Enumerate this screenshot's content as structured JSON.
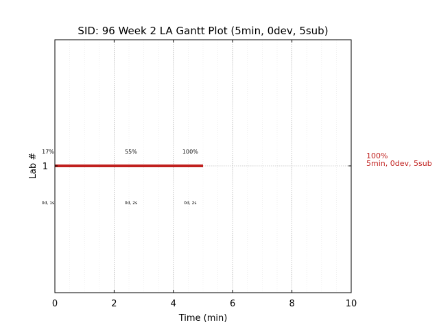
{
  "chart_data": {
    "type": "gantt",
    "title": "SID: 96 Week 2 LA Gantt Plot (5min, 0dev, 5sub)",
    "xlabel": "Time (min)",
    "ylabel": "Lab #",
    "xlim": [
      0,
      10
    ],
    "x_ticks": [
      "0",
      "2",
      "4",
      "6",
      "8",
      "10"
    ],
    "x_tick_values": [
      0,
      2,
      4,
      6,
      8,
      10
    ],
    "grid": true,
    "bar_color": "#c0201e",
    "rows": [
      {
        "label": "1",
        "start": 0,
        "end": 5,
        "side_labels": [
          "100%",
          "5min, 0dev, 5sub"
        ],
        "checkpoints": [
          {
            "x": 0,
            "pct": "17%",
            "time": "0d, 1s"
          },
          {
            "x": 2.8,
            "pct": "55%",
            "time": "0d, 2s"
          },
          {
            "x": 4.8,
            "pct": "100%",
            "time": "0d, 2s"
          }
        ]
      }
    ]
  }
}
